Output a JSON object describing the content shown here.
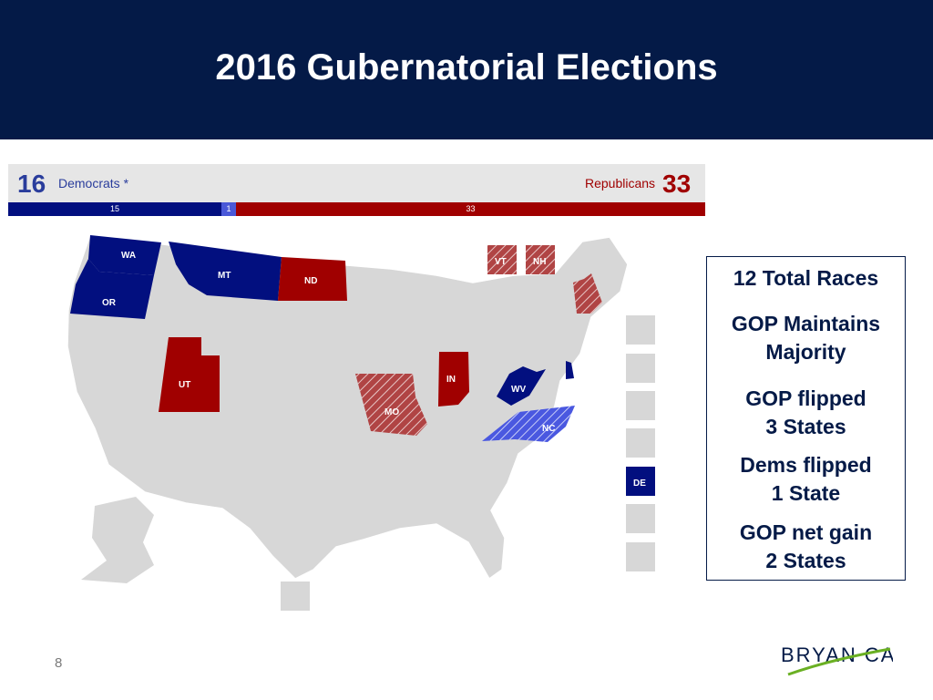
{
  "header": {
    "title": "2016 Gubernatorial Elections"
  },
  "tally": {
    "dem_count": "16",
    "dem_label": "Democrats *",
    "rep_label": "Republicans",
    "rep_count": "33",
    "bar": {
      "dem_value": "15",
      "other_value": "1",
      "rep_value": "33"
    }
  },
  "colors": {
    "header_bg": "#041a47",
    "democrat": "#020f7f",
    "republican": "#a00000",
    "dem_pickup": "#5b66e6",
    "gop_pickup": "#a03c3c",
    "no_race": "#d7d7d7"
  },
  "map": {
    "states": [
      {
        "label": "WA",
        "status": "democrat"
      },
      {
        "label": "OR",
        "status": "democrat"
      },
      {
        "label": "MT",
        "status": "democrat"
      },
      {
        "label": "ND",
        "status": "republican"
      },
      {
        "label": "UT",
        "status": "republican"
      },
      {
        "label": "MO",
        "status": "gop-pickup"
      },
      {
        "label": "IN",
        "status": "republican"
      },
      {
        "label": "WV",
        "status": "democrat"
      },
      {
        "label": "NC",
        "status": "dem-pickup"
      },
      {
        "label": "VT",
        "status": "gop-pickup"
      },
      {
        "label": "NH",
        "status": "gop-pickup"
      },
      {
        "label": "DE",
        "status": "democrat"
      }
    ]
  },
  "summary": {
    "total_races": "12 Total Races",
    "gop_maintains": [
      "GOP Maintains",
      "Majority"
    ],
    "gop_flipped": [
      "GOP flipped",
      "3 States"
    ],
    "dems_flipped": [
      "Dems flipped",
      "1 State"
    ],
    "gop_net_gain": [
      "GOP net gain",
      "2 States"
    ]
  },
  "footer": {
    "page_number": "8",
    "logo_text": "BRYAN CAVE"
  }
}
